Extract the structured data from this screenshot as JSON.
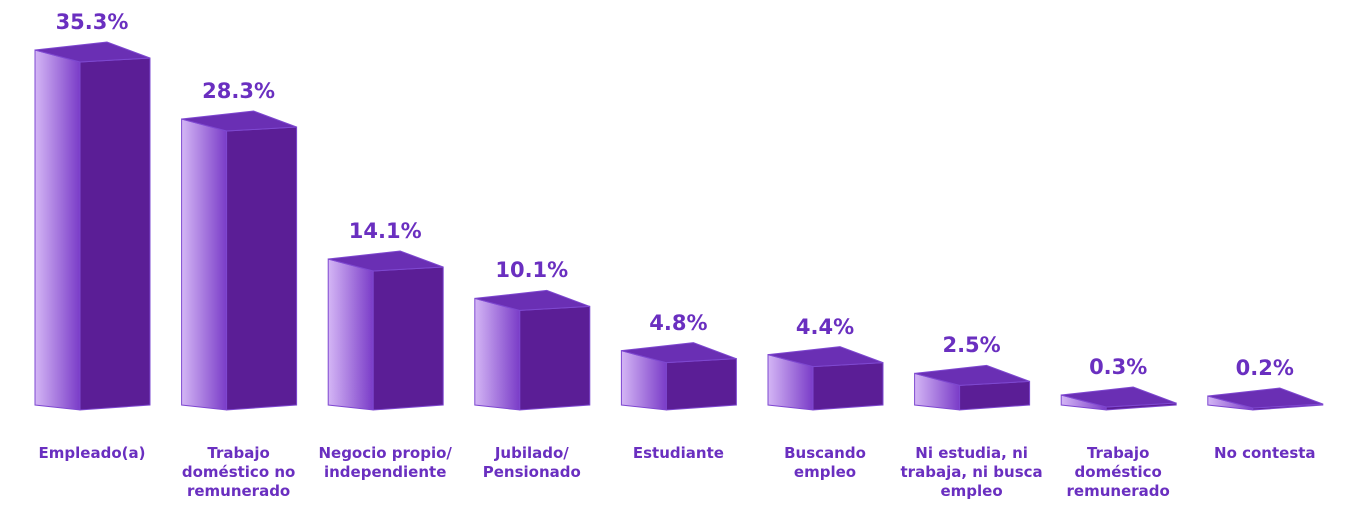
{
  "chart_data": {
    "type": "bar3d",
    "categories": [
      "Empleado(a)",
      "Trabajo doméstico no remunerado",
      "Negocio propio/ independiente",
      "Jubilado/ Pensionado",
      "Estudiante",
      "Buscando empleo",
      "Ni estudia, ni trabaja, ni busca empleo",
      "Trabajo doméstico remunerado",
      "No contesta"
    ],
    "values": [
      35.3,
      28.3,
      14.1,
      10.1,
      4.8,
      4.4,
      2.5,
      0.3,
      0.2
    ],
    "value_labels": [
      "35.3%",
      "28.3%",
      "14.1%",
      "10.1%",
      "4.8%",
      "4.4%",
      "2.5%",
      "0.3%",
      "0.2%"
    ],
    "color": "#5b1e96"
  }
}
